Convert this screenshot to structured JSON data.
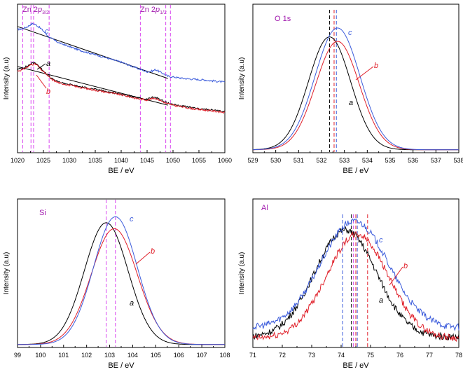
{
  "colors": {
    "a": "#000000",
    "b": "#e0202a",
    "c": "#3b5bdb",
    "guide": "#d946ef",
    "annotation": "#a21caf"
  },
  "chart_data": [
    {
      "type": "line",
      "title": "Zn 2p",
      "annotations": [
        "Zn 2",
        "p",
        "3/2",
        "Zn 2",
        "p",
        "1/2"
      ],
      "xlabel": "BE / eV",
      "ylabel": "Intensity (a.u)",
      "xlim": [
        1020,
        1060
      ],
      "ylim": [
        0,
        1
      ],
      "x_ticks": [
        "1020",
        "1025",
        "1030",
        "1035",
        "1040",
        "1045",
        "1050",
        "1055",
        "1060"
      ],
      "series_labels": [
        "c",
        "a",
        "b"
      ],
      "vlines_magenta": [
        1021,
        1022.6,
        1023.1,
        1026.1,
        1043.7,
        1048.6,
        1049.5
      ],
      "series": [
        {
          "name": "c",
          "x": [
            1020,
            1021,
            1022,
            1022.6,
            1023.1,
            1023.6,
            1024.2,
            1025,
            1026,
            1028,
            1032,
            1036,
            1040,
            1043,
            1045,
            1046,
            1046.6,
            1047.5,
            1049,
            1052,
            1056,
            1060
          ],
          "y": [
            0.83,
            0.835,
            0.85,
            0.865,
            0.87,
            0.86,
            0.845,
            0.82,
            0.78,
            0.74,
            0.69,
            0.65,
            0.61,
            0.57,
            0.545,
            0.55,
            0.56,
            0.545,
            0.515,
            0.5,
            0.49,
            0.475
          ]
        },
        {
          "name": "a",
          "x": [
            1020,
            1021,
            1022,
            1022.6,
            1023.2,
            1023.7,
            1024.3,
            1025.2,
            1026.5,
            1028,
            1032,
            1036,
            1040,
            1043,
            1045,
            1045.8,
            1046.4,
            1047.2,
            1048.5,
            1050,
            1054,
            1058,
            1060
          ],
          "y": [
            0.56,
            0.57,
            0.585,
            0.6,
            0.605,
            0.6,
            0.575,
            0.545,
            0.5,
            0.475,
            0.445,
            0.42,
            0.395,
            0.37,
            0.36,
            0.37,
            0.375,
            0.365,
            0.34,
            0.325,
            0.3,
            0.285,
            0.275
          ]
        },
        {
          "name": "b",
          "x": [
            1020,
            1021,
            1022,
            1022.6,
            1023.2,
            1023.7,
            1024.3,
            1025.2,
            1026.5,
            1028,
            1032,
            1036,
            1040,
            1043,
            1045,
            1045.8,
            1046.4,
            1047.2,
            1048.5,
            1050,
            1054,
            1058,
            1060
          ],
          "y": [
            0.55,
            0.56,
            0.578,
            0.593,
            0.597,
            0.592,
            0.568,
            0.54,
            0.495,
            0.47,
            0.44,
            0.415,
            0.39,
            0.365,
            0.355,
            0.362,
            0.368,
            0.358,
            0.335,
            0.32,
            0.295,
            0.28,
            0.27
          ]
        }
      ],
      "baselines": [
        {
          "name": "c",
          "x": [
            1020,
            1049
          ],
          "y": [
            0.85,
            0.5
          ]
        },
        {
          "name": "ab",
          "x": [
            1020,
            1049
          ],
          "y": [
            0.58,
            0.32
          ]
        }
      ]
    },
    {
      "type": "line",
      "title": "O 1s",
      "xlabel": "BE / eV",
      "ylabel": "Intensity (a.u)",
      "xlim": [
        529,
        538
      ],
      "ylim": [
        0,
        1
      ],
      "x_ticks": [
        "529",
        "530",
        "531",
        "532",
        "533",
        "534",
        "535",
        "536",
        "537",
        "538"
      ],
      "series_labels": [
        "c",
        "b",
        "a"
      ],
      "vlines": [
        {
          "series": "a",
          "x": 532.35
        },
        {
          "series": "b",
          "x": 532.55
        },
        {
          "series": "c",
          "x": 532.65
        }
      ],
      "series": [
        {
          "name": "a",
          "center": 532.35,
          "sigma": 0.92,
          "amplitude": 0.76,
          "baseline": 0.02
        },
        {
          "name": "b",
          "center": 532.7,
          "sigma": 0.95,
          "amplitude": 0.73,
          "baseline": 0.02
        },
        {
          "name": "c",
          "center": 532.7,
          "sigma": 0.98,
          "amplitude": 0.82,
          "baseline": 0.02
        }
      ]
    },
    {
      "type": "line",
      "title": "Si",
      "xlabel": "BE / eV",
      "ylabel": "Intensity (a.u)",
      "xlim": [
        99,
        108
      ],
      "ylim": [
        0,
        1
      ],
      "x_ticks": [
        "99",
        "100",
        "101",
        "102",
        "103",
        "104",
        "105",
        "106",
        "107",
        "108"
      ],
      "series_labels": [
        "c",
        "b",
        "a"
      ],
      "vlines_magenta": [
        102.85,
        103.25
      ],
      "series": [
        {
          "name": "a",
          "center": 102.85,
          "sigma": 0.95,
          "amplitude": 0.82,
          "baseline": 0.02
        },
        {
          "name": "b",
          "center": 103.2,
          "sigma": 1.0,
          "amplitude": 0.78,
          "baseline": 0.02
        },
        {
          "name": "c",
          "center": 103.25,
          "sigma": 0.95,
          "amplitude": 0.86,
          "baseline": 0.02
        }
      ]
    },
    {
      "type": "line",
      "title": "Al",
      "xlabel": "BE / eV",
      "ylabel": "Intensity (a.u)",
      "xlim": [
        71,
        78
      ],
      "ylim": [
        0,
        1
      ],
      "x_ticks": [
        "71",
        "72",
        "73",
        "74",
        "75",
        "76",
        "77",
        "78"
      ],
      "series_labels": [
        "c",
        "b",
        "a"
      ],
      "vlines": [
        {
          "series": "c",
          "x": 74.05
        },
        {
          "series": "a",
          "x": 74.35
        },
        {
          "series": "guide",
          "x": 74.42
        },
        {
          "series": "b",
          "x": 74.5
        },
        {
          "series": "c",
          "x": 74.55
        },
        {
          "series": "b",
          "x": 74.9
        }
      ],
      "series": [
        {
          "name": "a",
          "center": 74.15,
          "sigma": 1.05,
          "amplitude": 0.72,
          "baseline": 0.07
        },
        {
          "name": "b",
          "center": 74.55,
          "sigma": 1.05,
          "amplitude": 0.7,
          "baseline": 0.06
        },
        {
          "name": "c",
          "center": 74.45,
          "sigma": 1.15,
          "amplitude": 0.72,
          "baseline": 0.13
        }
      ]
    }
  ]
}
